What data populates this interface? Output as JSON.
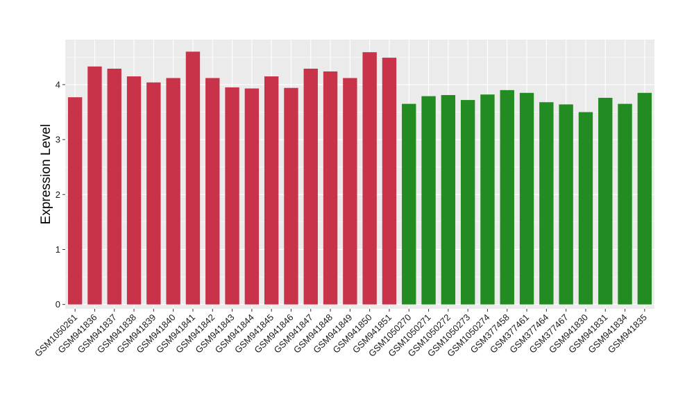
{
  "chart_data": {
    "type": "bar",
    "title": "",
    "xlabel": "",
    "ylabel": "Expression Level",
    "ylim": [
      -0.08,
      4.82
    ],
    "yticks": [
      0,
      1,
      2,
      3,
      4
    ],
    "grid": true,
    "legend": "none",
    "colors": {
      "group1": "#C8334A",
      "group2": "#228B22",
      "panel_bg": "#EBEBEB",
      "grid": "#FFFFFF"
    },
    "categories": [
      "GSM1050261",
      "GSM941836",
      "GSM941837",
      "GSM941838",
      "GSM941839",
      "GSM941840",
      "GSM941841",
      "GSM941842",
      "GSM941843",
      "GSM941844",
      "GSM941845",
      "GSM941846",
      "GSM941847",
      "GSM941848",
      "GSM941849",
      "GSM941850",
      "GSM941851",
      "GSM1050270",
      "GSM1050271",
      "GSM1050272",
      "GSM1050273",
      "GSM1050274",
      "GSM377458",
      "GSM377461",
      "GSM377464",
      "GSM377467",
      "GSM941830",
      "GSM941831",
      "GSM941834",
      "GSM941835"
    ],
    "values": [
      3.77,
      4.33,
      4.29,
      4.15,
      4.04,
      4.12,
      4.6,
      4.12,
      3.95,
      3.93,
      4.15,
      3.94,
      4.29,
      4.24,
      4.12,
      4.59,
      4.49,
      3.65,
      3.79,
      3.81,
      3.72,
      3.82,
      3.9,
      3.85,
      3.68,
      3.64,
      3.5,
      3.76,
      3.65,
      3.85
    ],
    "groups": [
      1,
      1,
      1,
      1,
      1,
      1,
      1,
      1,
      1,
      1,
      1,
      1,
      1,
      1,
      1,
      1,
      1,
      2,
      2,
      2,
      2,
      2,
      2,
      2,
      2,
      2,
      2,
      2,
      2,
      2
    ]
  }
}
